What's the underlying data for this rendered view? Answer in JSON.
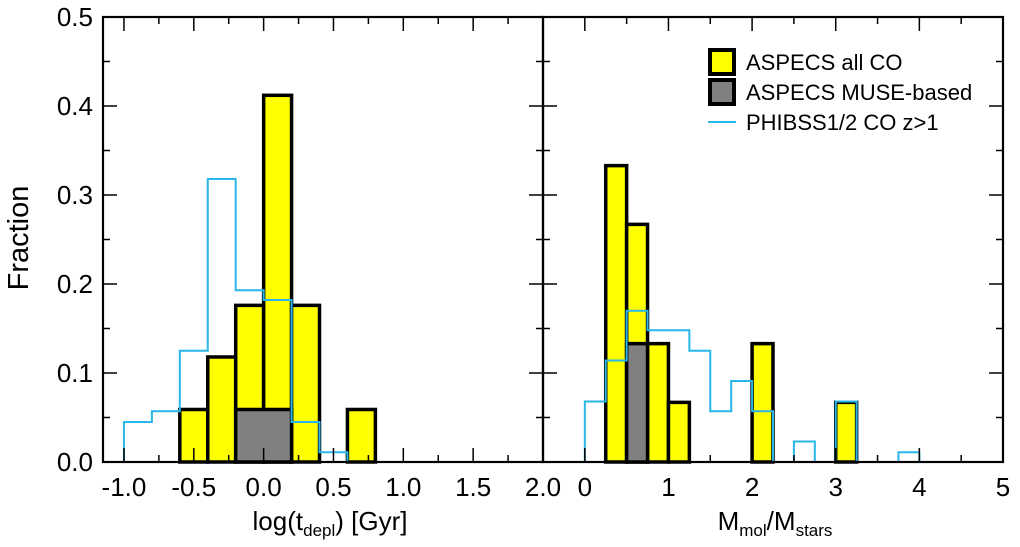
{
  "figure": {
    "ylabel": "Fraction"
  },
  "chart_data": [
    {
      "type": "bar",
      "panel": "left",
      "xlabel_main": "log(t",
      "xlabel_sub": "depl",
      "xlabel_tail": ") [Gyr]",
      "ylabel": "Fraction",
      "xlim": [
        -1.15,
        2.0
      ],
      "ylim": [
        0.0,
        0.5
      ],
      "xticks": [
        -1.0,
        -0.5,
        0.0,
        0.5,
        1.0,
        1.5,
        2.0
      ],
      "xtick_labels": [
        "-1.0",
        "-0.5",
        "0.0",
        "0.5",
        "1.0",
        "1.5",
        "2.0"
      ],
      "yticks": [
        0.0,
        0.1,
        0.2,
        0.3,
        0.4,
        0.5
      ],
      "ytick_labels": [
        "0.0",
        "0.1",
        "0.2",
        "0.3",
        "0.4",
        "0.5"
      ],
      "series": [
        {
          "name": "ASPECS all CO",
          "style": "filled-histogram",
          "color": "#ffff00",
          "edges": [
            -0.6,
            -0.4,
            -0.2,
            0.0,
            0.2,
            0.4,
            0.6,
            0.8
          ],
          "values": [
            0.059,
            0.118,
            0.176,
            0.412,
            0.176,
            0.0,
            0.059
          ]
        },
        {
          "name": "ASPECS MUSE-based",
          "style": "filled-histogram",
          "color": "#808080",
          "edges": [
            -0.2,
            0.2
          ],
          "values": [
            0.059
          ]
        },
        {
          "name": "PHIBSS1/2 CO z>1",
          "style": "step",
          "color": "#29b6e8",
          "edges": [
            -1.0,
            -0.8,
            -0.6,
            -0.4,
            -0.2,
            0.0,
            0.2,
            0.4,
            0.6
          ],
          "values": [
            0.045,
            0.057,
            0.125,
            0.318,
            0.193,
            0.182,
            0.045,
            0.011
          ]
        }
      ]
    },
    {
      "type": "bar",
      "panel": "right",
      "xlabel_main": "M",
      "xlabel_sub1": "mol",
      "xlabel_mid": "/M",
      "xlabel_sub2": "stars",
      "xlim": [
        -0.5,
        5.0
      ],
      "ylim": [
        0.0,
        0.5
      ],
      "xticks": [
        0,
        1,
        2,
        3,
        4,
        5
      ],
      "xtick_labels": [
        "0",
        "1",
        "2",
        "3",
        "4",
        "5"
      ],
      "series": [
        {
          "name": "ASPECS all CO",
          "style": "filled-histogram",
          "color": "#ffff00",
          "edges": [
            0.25,
            0.5,
            0.75,
            1.0,
            1.25,
            1.5,
            1.75,
            2.0,
            2.25,
            2.5,
            2.75,
            3.0,
            3.25
          ],
          "values": [
            0.333,
            0.267,
            0.133,
            0.067,
            0.0,
            0.0,
            0.0,
            0.133,
            0.0,
            0.0,
            0.0,
            0.067
          ]
        },
        {
          "name": "ASPECS MUSE-based",
          "style": "filled-histogram",
          "color": "#808080",
          "edges": [
            0.5,
            0.75
          ],
          "values": [
            0.133
          ]
        },
        {
          "name": "PHIBSS1/2 CO z>1",
          "style": "step",
          "color": "#29b6e8",
          "edges": [
            0.0,
            0.25,
            0.5,
            0.75,
            1.0,
            1.25,
            1.5,
            1.75,
            2.0,
            2.25,
            2.5,
            2.75,
            3.0,
            3.25,
            3.5,
            3.75,
            4.0
          ],
          "values": [
            0.068,
            0.114,
            0.17,
            0.148,
            0.148,
            0.125,
            0.057,
            0.091,
            0.057,
            0.0,
            0.023,
            0.0,
            0.068,
            0.0,
            0.0,
            0.011
          ]
        }
      ],
      "legend": {
        "placement": "top-right",
        "entries": [
          {
            "label": "ASPECS all CO",
            "color": "#ffff00",
            "kind": "box"
          },
          {
            "label": "ASPECS MUSE-based",
            "color": "#808080",
            "kind": "box"
          },
          {
            "label": "PHIBSS1/2 CO z>1",
            "color": "#29b6e8",
            "kind": "line"
          }
        ]
      }
    }
  ]
}
